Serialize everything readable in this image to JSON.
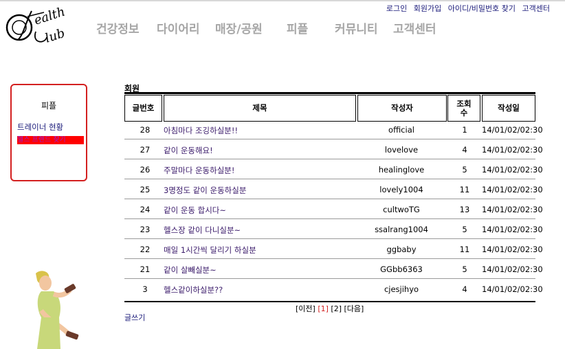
{
  "brand": {
    "logo_text_line1": "ealth",
    "logo_text_line2": "lub"
  },
  "nav": [
    "건강정보",
    "다이어리",
    "매장/공원",
    "피플",
    "커뮤니티",
    "고객센터"
  ],
  "util_links": [
    "로그인",
    "회원가입",
    "아이디/비밀번호 찾기",
    "고객센터"
  ],
  "sidebar": {
    "title": "피플",
    "items": [
      "트레이너 현황",
      "헬스 프렌드 찾기"
    ]
  },
  "board": {
    "title": "회원",
    "headers": [
      "글번호",
      "제목",
      "작성자",
      "조회수",
      "작성일"
    ],
    "rows": [
      {
        "num": "28",
        "title": "아침마다 조깅하실분!!",
        "author": "official",
        "views": "1",
        "date": "14/01/02/02:30"
      },
      {
        "num": "27",
        "title": "같이 운동해요!",
        "author": "lovelove",
        "views": "4",
        "date": "14/01/02/02:30"
      },
      {
        "num": "26",
        "title": "주말마다 운동하실분!",
        "author": "healinglove",
        "views": "5",
        "date": "14/01/02/02:30"
      },
      {
        "num": "25",
        "title": "3명정도 같이 운동하실분",
        "author": "lovely1004",
        "views": "11",
        "date": "14/01/02/02:30"
      },
      {
        "num": "24",
        "title": "같이 운동 합시다~",
        "author": "cultwoTG",
        "views": "13",
        "date": "14/01/02/02:30"
      },
      {
        "num": "23",
        "title": "헬스장 같이 다니실분~",
        "author": "ssalrang1004",
        "views": "5",
        "date": "14/01/02/02:30"
      },
      {
        "num": "22",
        "title": "매일 1시간씩 달리기 하실분",
        "author": "ggbaby",
        "views": "11",
        "date": "14/01/02/02:30"
      },
      {
        "num": "21",
        "title": "같이 살빼실분~",
        "author": "GGbb6363",
        "views": "5",
        "date": "14/01/02/02:30"
      },
      {
        "num": "3",
        "title": "헬스같이하실분??",
        "author": "cjesjihyo",
        "views": "4",
        "date": "14/01/02/02:30"
      }
    ],
    "pager": {
      "prev": "[이전]",
      "pages": [
        "[1]",
        "[2]"
      ],
      "next": "[다음]"
    },
    "write_label": "글쓰기"
  }
}
